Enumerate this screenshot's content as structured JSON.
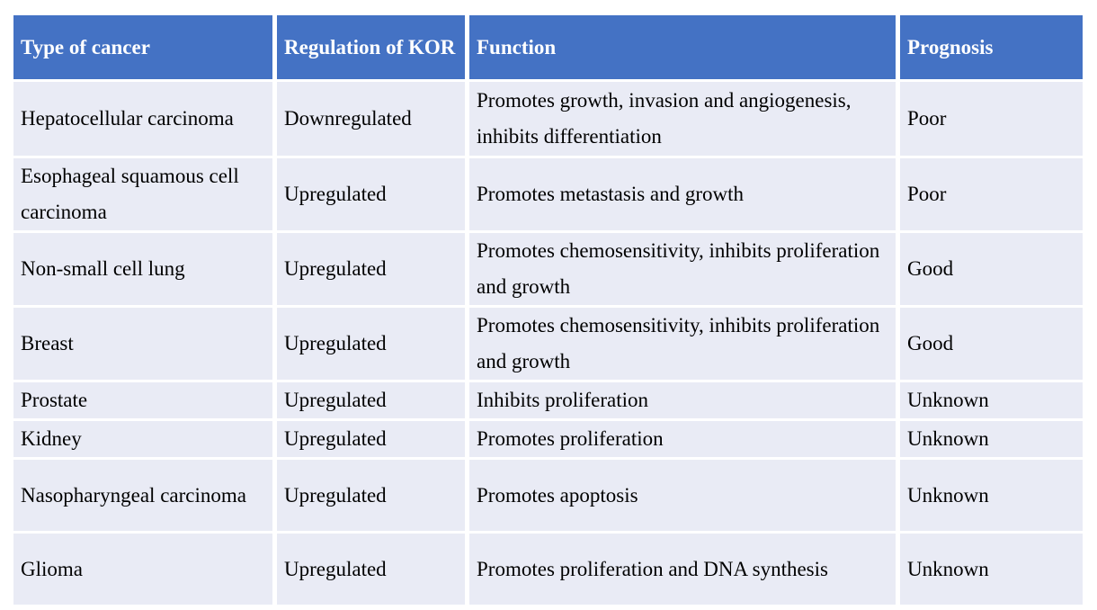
{
  "table": {
    "columns": [
      "Type of cancer",
      "Regulation of KOR",
      "Function",
      "Prognosis"
    ],
    "rows": [
      {
        "type": "Hepatocellular carcinoma",
        "regulation": "Downregulated",
        "function": "Promotes growth, invasion and angiogenesis, inhibits differentiation",
        "prognosis": "Poor"
      },
      {
        "type": "Esophageal squamous cell carcinoma",
        "regulation": "Upregulated",
        "function": "Promotes metastasis and growth",
        "prognosis": "Poor"
      },
      {
        "type": "Non-small cell lung",
        "regulation": "Upregulated",
        "function": "Promotes chemosensitivity, inhibits proliferation and growth",
        "prognosis": "Good"
      },
      {
        "type": "Breast",
        "regulation": "Upregulated",
        "function": "Promotes chemosensitivity, inhibits proliferation and growth",
        "prognosis": "Good"
      },
      {
        "type": "Prostate",
        "regulation": "Upregulated",
        "function": "Inhibits proliferation",
        "prognosis": "Unknown"
      },
      {
        "type": "Kidney",
        "regulation": "Upregulated",
        "function": "Promotes proliferation",
        "prognosis": "Unknown"
      },
      {
        "type": "Nasopharyngeal carcinoma",
        "regulation": "Upregulated",
        "function": "Promotes apoptosis",
        "prognosis": "Unknown"
      },
      {
        "type": "Glioma",
        "regulation": "Upregulated",
        "function": "Promotes proliferation and DNA synthesis",
        "prognosis": "Unknown"
      }
    ],
    "colors": {
      "header_bg": "#4472C4",
      "header_text": "#FFFFFF",
      "row_bg": "#E9EBF5",
      "body_text": "#000000",
      "gutter": "#FFFFFF"
    }
  }
}
